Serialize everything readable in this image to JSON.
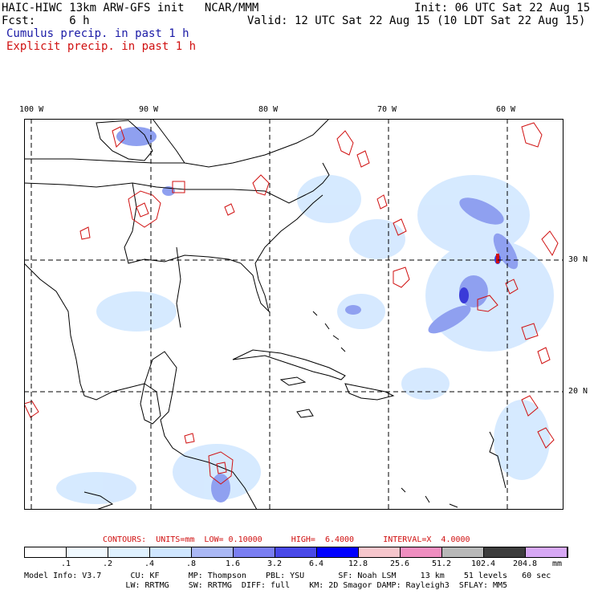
{
  "header": {
    "model_line": "HAIC-HIWC 13km ARW-GFS init   NCAR/MMM",
    "init_line": "Init: 06 UTC Sat 22 Aug 15",
    "fcst_line": "Fcst:     6 h",
    "valid_line": "Valid: 12 UTC Sat 22 Aug 15 (10 LDT Sat 22 Aug 15)",
    "cumulus_line": "Cumulus precip. in past 1 h",
    "explicit_line": "Explicit precip. in past 1 h"
  },
  "map": {
    "lon_labels": [
      "100 W",
      "90 W",
      "80 W",
      "70 W",
      "60 W"
    ],
    "lat_labels": [
      "30 N",
      "20 N"
    ],
    "colors": {
      "land_outline": "#000000",
      "grid_line": "#000000",
      "explicit_contour": "#d01010",
      "light_precip": "#cfe6ff",
      "medium_precip": "#8fa0f0",
      "heavy_precip": "#3a3ad8"
    }
  },
  "contours": {
    "text": "CONTOURS:  UNITS=mm  LOW= 0.10000      HIGH=  6.4000      INTERVAL=X  4.0000"
  },
  "colorbar": {
    "labels": [
      ".1",
      ".2",
      ".4",
      ".8",
      "1.6",
      "3.2",
      "6.4",
      "12.8",
      "25.6",
      "51.2",
      "102.4",
      "204.8"
    ],
    "units": "mm",
    "colors": [
      "#ffffff",
      "#ffffff",
      "#f0f9ff",
      "#dff1ff",
      "#cfe6ff",
      "#aab8f5",
      "#7a7ef2",
      "#4848e8",
      "#0000ff",
      "#f6c6cc",
      "#ef8ec0",
      "#b8b8b8",
      "#3c3c3c",
      "#d7a8f5"
    ]
  },
  "model_info": {
    "line1": "Model Info: V3.7      CU: KF      MP: Thompson    PBL: YSU       SF: Noah LSM     13 km    51 levels   60 sec",
    "line2": "                     LW: RRTMG    SW: RRTMG  DIFF: full    KM: 2D Smagor DAMP: Rayleigh3  SFLAY: MM5"
  }
}
